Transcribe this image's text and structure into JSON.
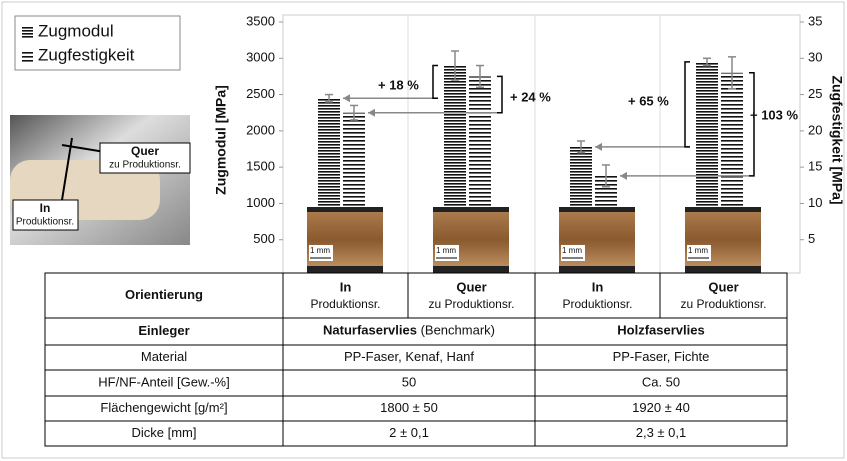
{
  "chart_data": {
    "type": "bar",
    "ylabel": "Zugmodul [MPa]",
    "y2label": "Zugfestigkeit [MPa]",
    "ylim": [
      0,
      3500
    ],
    "yticks": [
      500,
      1000,
      1500,
      2000,
      2500,
      3000,
      3500
    ],
    "y2lim": [
      0,
      35
    ],
    "y2ticks": [
      5,
      10,
      15,
      20,
      25,
      30,
      35
    ],
    "series": [
      {
        "name": "Zugmodul",
        "color": "#111111",
        "values": [
          2450,
          2900,
          1780,
          2950
        ],
        "errors": [
          50,
          200,
          80,
          50
        ]
      },
      {
        "name": "Zugfestigkeit",
        "color": "#111111",
        "axis": "y2",
        "values": [
          22.5,
          27.5,
          13.8,
          28
        ],
        "errors": [
          1,
          1.5,
          1.5,
          2.2
        ]
      }
    ],
    "annotations": [
      "+ 18 %",
      "+ 24 %",
      "+ 65 %",
      "+ 103 %"
    ],
    "scale_labels": [
      "1 mm",
      "1 mm",
      "1 mm",
      "1 mm"
    ],
    "inset": [
      {
        "title": "Quer",
        "sub": "zu Produktionsr."
      },
      {
        "title": "In",
        "sub": "Produktionsr."
      }
    ]
  },
  "table": {
    "header": [
      "Orientierung",
      {
        "main": "In",
        "sub": "Produktionsr."
      },
      {
        "main": "Quer",
        "sub": "zu Produktionsr."
      },
      {
        "main": "In",
        "sub": "Produktionsr."
      },
      {
        "main": "Quer",
        "sub": "zu Produktionsr."
      }
    ],
    "einleger": {
      "label": "Einleger",
      "cells": [
        {
          "bold": "Naturfaservlies",
          "rest": "(Benchmark)"
        },
        {
          "bold": "Holzfaservlies",
          "rest": ""
        }
      ]
    },
    "rows": [
      [
        "Material",
        "PP-Faser, Kenaf, Hanf",
        "PP-Faser, Fichte"
      ],
      [
        "HF/NF-Anteil [Gew.-%]",
        "50",
        "Ca. 50"
      ],
      [
        "Flächengewicht [g/m²]",
        "1800 ± 50",
        "1920 ± 40"
      ],
      [
        "Dicke [mm]",
        "2 ± 0,1",
        "2,3 ± 0,1"
      ]
    ]
  }
}
